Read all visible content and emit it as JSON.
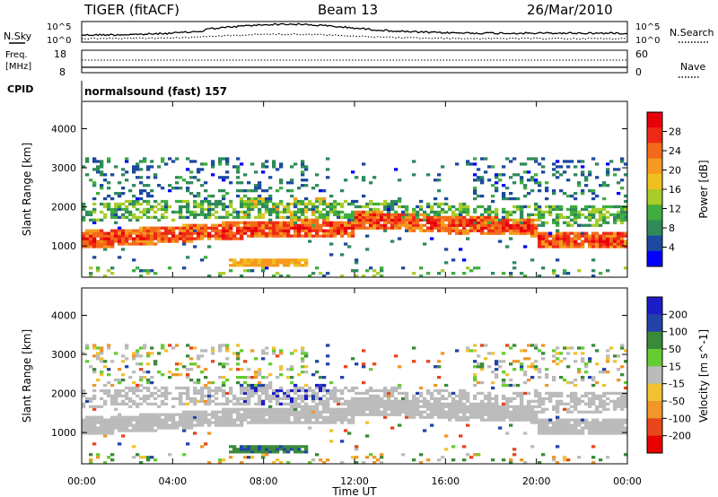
{
  "header": {
    "title": "TIGER (fitACF)",
    "beam": "Beam 13",
    "date": "26/Mar/2010"
  },
  "top_panels": {
    "nsky_label": "N.Sky",
    "nsearch_label": "N.Search",
    "noise_tick_top": "10^5",
    "noise_tick_bottom": "10^0",
    "freq_label_1": "Freq.",
    "freq_label_2": "[MHz]",
    "freq_ticks": [
      "18",
      "8"
    ],
    "nave_label": "Nave",
    "nave_ticks": [
      "60",
      "0"
    ],
    "cpid_label": "CPID",
    "cpid_value": "normalsound (fast) 157"
  },
  "colors": {
    "power": [
      "#0000ff",
      "#1d4aa0",
      "#2f8a5a",
      "#3fae3f",
      "#a8cc2a",
      "#f0c020",
      "#f59a1e",
      "#f46a1a",
      "#ee2a14",
      "#e8000a"
    ],
    "velocity": [
      "#1d1dc8",
      "#2244aa",
      "#3a8a3a",
      "#66cc33",
      "#bbbbbb",
      "#f2c232",
      "#f0962a",
      "#e8461c",
      "#e80000"
    ]
  },
  "chart_data": [
    {
      "type": "heatmap",
      "name": "power",
      "xlabel": "",
      "ylabel": "Slant Range [km]",
      "x_ticks": [
        "00:00",
        "04:00",
        "08:00",
        "12:00",
        "16:00",
        "20:00",
        "00:00"
      ],
      "y_ticks": [
        "1000",
        "2000",
        "3000",
        "4000"
      ],
      "ylim": [
        200,
        4700
      ],
      "xlim_hours": [
        0,
        24
      ],
      "colorbar_label": "Power [dB]",
      "colorbar_ticks": [
        "4",
        "8",
        "12",
        "16",
        "20",
        "24",
        "28"
      ],
      "colorbar_range": [
        0,
        32
      ],
      "features": [
        {
          "hours": [
            0,
            24
          ],
          "range_km": [
            1150,
            1550
          ],
          "value_db": 28
        },
        {
          "hours": [
            0,
            24
          ],
          "range_km": [
            1600,
            2100
          ],
          "value_db": 12
        },
        {
          "hours": [
            0,
            24
          ],
          "range_km": [
            2300,
            2700
          ],
          "value_db": 8
        },
        {
          "hours": [
            6.5,
            10
          ],
          "range_km": [
            500,
            650
          ],
          "value_db": 20
        }
      ]
    },
    {
      "type": "heatmap",
      "name": "velocity",
      "xlabel": "Time UT",
      "ylabel": "Slant Range [km]",
      "x_ticks": [
        "00:00",
        "04:00",
        "08:00",
        "12:00",
        "16:00",
        "20:00",
        "00:00"
      ],
      "y_ticks": [
        "1000",
        "2000",
        "3000",
        "4000"
      ],
      "ylim": [
        200,
        4700
      ],
      "xlim_hours": [
        0,
        24
      ],
      "colorbar_label": "Velocity [m s^-1]",
      "colorbar_ticks": [
        "200",
        "100",
        "50",
        "15",
        "-15",
        "-50",
        "-100",
        "-200"
      ],
      "colorbar_range": [
        -250,
        250
      ],
      "features": [
        {
          "hours": [
            0,
            24
          ],
          "range_km": [
            1150,
            1600
          ],
          "value_ms": 0
        },
        {
          "hours": [
            0,
            24
          ],
          "range_km": [
            1900,
            2300
          ],
          "value_ms": 0
        },
        {
          "hours": [
            7,
            11
          ],
          "range_km": [
            1800,
            2200
          ],
          "value_ms": 200
        },
        {
          "hours": [
            6.5,
            10
          ],
          "range_km": [
            500,
            650
          ],
          "value_ms": 70
        }
      ]
    }
  ],
  "axis": {
    "time_label": "Time UT"
  }
}
